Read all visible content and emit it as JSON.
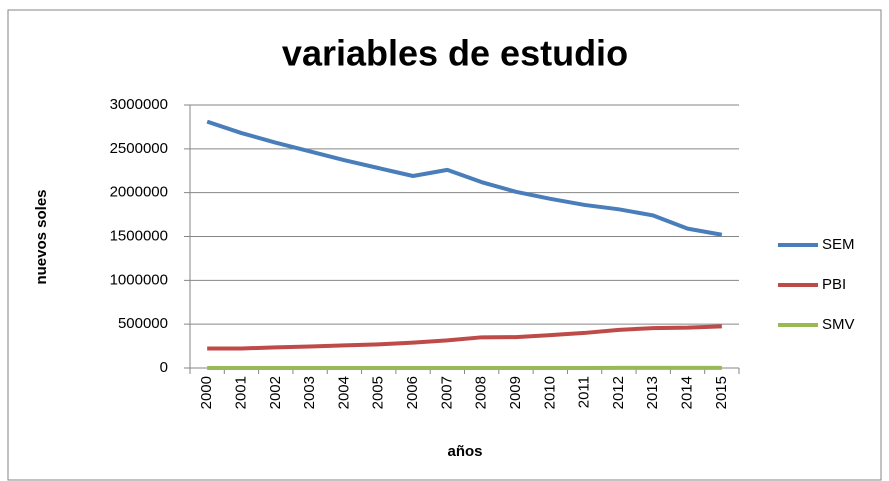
{
  "chart_data": {
    "type": "line",
    "title": "variables de estudio",
    "x_label": "años",
    "y_label": "nuevos soles",
    "categories": [
      "2000",
      "2001",
      "2002",
      "2003",
      "2004",
      "2005",
      "2006",
      "2007",
      "2008",
      "2009",
      "2010",
      "2011",
      "2012",
      "2013",
      "2014",
      "2015"
    ],
    "series": [
      {
        "name": "SEM",
        "color": "#4a7ebb",
        "values": [
          2810000,
          2680000,
          2570000,
          2470000,
          2370000,
          2280000,
          2190000,
          2260000,
          2120000,
          2010000,
          1930000,
          1860000,
          1810000,
          1740000,
          1590000,
          1520000
        ]
      },
      {
        "name": "PBI",
        "color": "#be4b48",
        "values": [
          222000,
          223000,
          235000,
          245000,
          258000,
          270000,
          290000,
          315000,
          350000,
          352000,
          375000,
          400000,
          435000,
          455000,
          460000,
          475000
        ]
      },
      {
        "name": "SMV",
        "color": "#98b954",
        "values": [
          410,
          460,
          460,
          460,
          500,
          550,
          550,
          550,
          550,
          550,
          580,
          675,
          750,
          750,
          750,
          750
        ]
      }
    ],
    "ylim": [
      0,
      3000000
    ],
    "yticks": [
      0,
      500000,
      1000000,
      1500000,
      2000000,
      2500000,
      3000000
    ],
    "grid": true,
    "legend": "right"
  }
}
